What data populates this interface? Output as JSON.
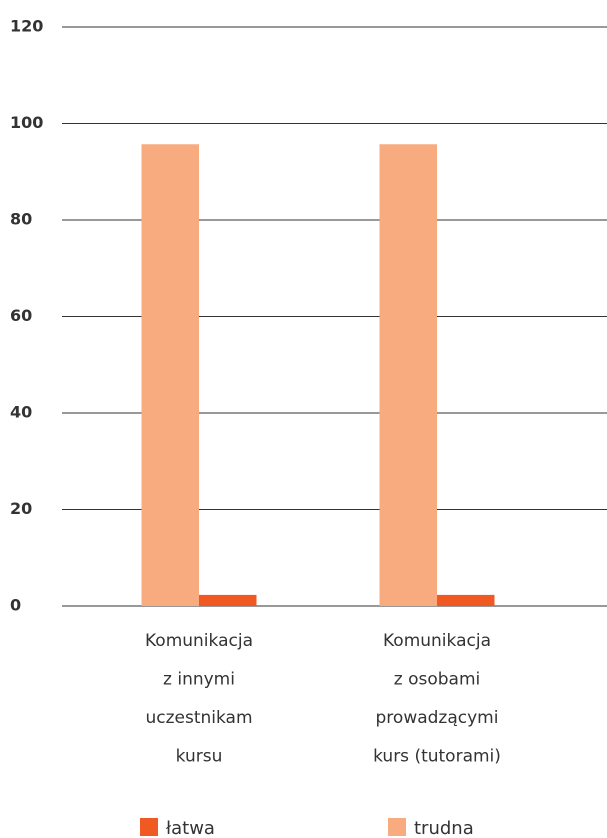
{
  "chart_data": {
    "type": "bar",
    "categories": [
      [
        "Komunikacja",
        "z innymi",
        "uczestnikam",
        "kursu"
      ],
      [
        "Komunikacja",
        "z osobami",
        "prowadzącymi",
        "kurs (tutorami)"
      ]
    ],
    "series": [
      {
        "name": "trudna",
        "color": "#f9ab80",
        "values": [
          95.7,
          95.7
        ]
      },
      {
        "name": "łatwa",
        "color": "#f05a22",
        "values": [
          2.3,
          2.3
        ]
      }
    ],
    "ylim": [
      0,
      120
    ],
    "yticks": [
      0,
      20,
      40,
      60,
      80,
      100,
      120
    ],
    "grid": true
  }
}
